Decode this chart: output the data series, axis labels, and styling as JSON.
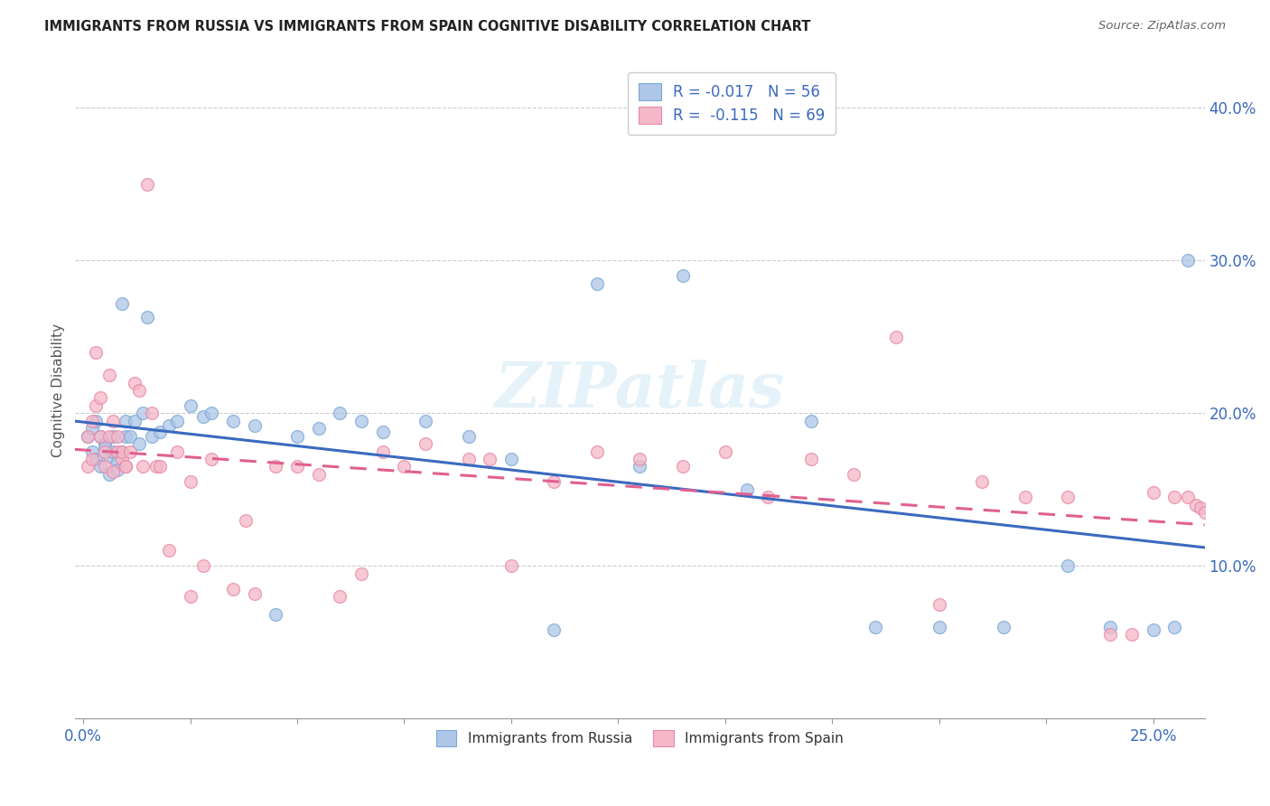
{
  "title": "IMMIGRANTS FROM RUSSIA VS IMMIGRANTS FROM SPAIN COGNITIVE DISABILITY CORRELATION CHART",
  "source": "Source: ZipAtlas.com",
  "ylabel": "Cognitive Disability",
  "ylim": [
    0.0,
    0.43
  ],
  "xlim": [
    -0.002,
    0.262
  ],
  "russia_color": "#aec6e8",
  "russia_edge_color": "#7ba8d4",
  "spain_color": "#f4b8c8",
  "spain_edge_color": "#e888a8",
  "russia_line_color": "#3a6abf",
  "spain_line_color": "#e06090",
  "watermark": "ZIPatlas",
  "russia_R": -0.017,
  "spain_R": -0.115,
  "russia_x": [
    0.001,
    0.002,
    0.002,
    0.003,
    0.003,
    0.004,
    0.004,
    0.005,
    0.005,
    0.006,
    0.006,
    0.007,
    0.007,
    0.008,
    0.008,
    0.009,
    0.009,
    0.01,
    0.01,
    0.011,
    0.012,
    0.013,
    0.014,
    0.015,
    0.016,
    0.018,
    0.02,
    0.022,
    0.025,
    0.028,
    0.03,
    0.035,
    0.04,
    0.045,
    0.05,
    0.055,
    0.06,
    0.065,
    0.07,
    0.08,
    0.09,
    0.1,
    0.11,
    0.12,
    0.13,
    0.14,
    0.155,
    0.17,
    0.185,
    0.2,
    0.215,
    0.23,
    0.24,
    0.25,
    0.255,
    0.258
  ],
  "russia_y": [
    0.185,
    0.19,
    0.175,
    0.17,
    0.195,
    0.165,
    0.185,
    0.18,
    0.178,
    0.172,
    0.16,
    0.185,
    0.175,
    0.168,
    0.163,
    0.272,
    0.175,
    0.185,
    0.195,
    0.185,
    0.195,
    0.18,
    0.2,
    0.263,
    0.185,
    0.188,
    0.192,
    0.195,
    0.205,
    0.198,
    0.2,
    0.195,
    0.192,
    0.068,
    0.185,
    0.19,
    0.2,
    0.195,
    0.188,
    0.195,
    0.185,
    0.17,
    0.058,
    0.285,
    0.165,
    0.29,
    0.15,
    0.195,
    0.06,
    0.06,
    0.06,
    0.1,
    0.06,
    0.058,
    0.06,
    0.3
  ],
  "spain_x": [
    0.001,
    0.001,
    0.002,
    0.002,
    0.003,
    0.003,
    0.004,
    0.004,
    0.005,
    0.005,
    0.006,
    0.006,
    0.007,
    0.007,
    0.008,
    0.008,
    0.009,
    0.009,
    0.01,
    0.01,
    0.011,
    0.012,
    0.013,
    0.014,
    0.015,
    0.016,
    0.017,
    0.018,
    0.02,
    0.022,
    0.025,
    0.028,
    0.03,
    0.035,
    0.038,
    0.04,
    0.045,
    0.05,
    0.055,
    0.06,
    0.065,
    0.07,
    0.075,
    0.08,
    0.09,
    0.095,
    0.1,
    0.11,
    0.12,
    0.13,
    0.14,
    0.15,
    0.16,
    0.17,
    0.18,
    0.19,
    0.2,
    0.21,
    0.22,
    0.23,
    0.24,
    0.245,
    0.25,
    0.255,
    0.258,
    0.26,
    0.261,
    0.262,
    0.025
  ],
  "spain_y": [
    0.185,
    0.165,
    0.17,
    0.195,
    0.24,
    0.205,
    0.185,
    0.21,
    0.175,
    0.165,
    0.225,
    0.185,
    0.195,
    0.162,
    0.175,
    0.185,
    0.17,
    0.175,
    0.165,
    0.165,
    0.175,
    0.22,
    0.215,
    0.165,
    0.35,
    0.2,
    0.165,
    0.165,
    0.11,
    0.175,
    0.155,
    0.1,
    0.17,
    0.085,
    0.13,
    0.082,
    0.165,
    0.165,
    0.16,
    0.08,
    0.095,
    0.175,
    0.165,
    0.18,
    0.17,
    0.17,
    0.1,
    0.155,
    0.175,
    0.17,
    0.165,
    0.175,
    0.145,
    0.17,
    0.16,
    0.25,
    0.075,
    0.155,
    0.145,
    0.145,
    0.055,
    0.055,
    0.148,
    0.145,
    0.145,
    0.14,
    0.138,
    0.135,
    0.08
  ]
}
